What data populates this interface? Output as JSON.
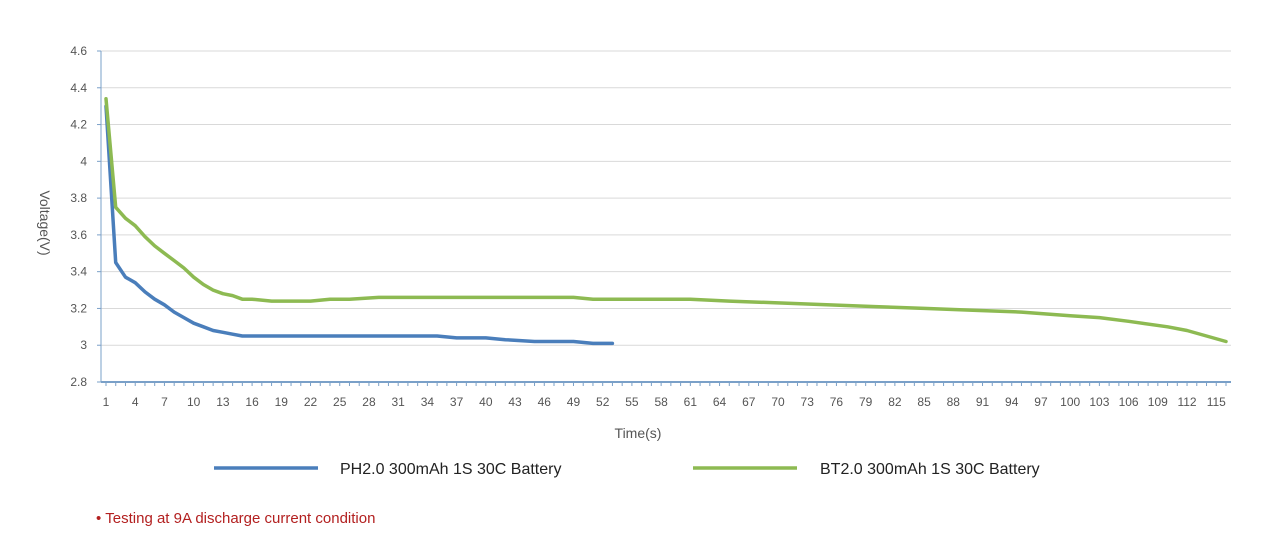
{
  "chart_data": {
    "type": "line",
    "xlabel": "Time(s)",
    "ylabel": "Voltage(V)",
    "xlim": [
      1,
      116
    ],
    "ylim": [
      2.8,
      4.6
    ],
    "y_ticks": [
      2.8,
      3,
      3.2,
      3.4,
      3.6,
      3.8,
      4,
      4.2,
      4.4,
      4.6
    ],
    "y_tick_labels": [
      "2.8",
      "3",
      "3.2",
      "3.4",
      "3.6",
      "3.8",
      "4",
      "4.2",
      "4.4",
      "4.6"
    ],
    "x_ticks": [
      1,
      4,
      7,
      10,
      13,
      16,
      19,
      22,
      25,
      28,
      31,
      34,
      37,
      40,
      43,
      46,
      49,
      52,
      55,
      58,
      61,
      64,
      67,
      70,
      73,
      76,
      79,
      82,
      85,
      88,
      91,
      94,
      97,
      100,
      103,
      106,
      109,
      112,
      115
    ],
    "grid": "horizontal",
    "legend_position": "bottom",
    "series": [
      {
        "name": "PH2.0 300mAh 1S 30C Battery",
        "color": "#4a7ebb",
        "x": [
          1,
          2,
          3,
          4,
          5,
          6,
          7,
          8,
          9,
          10,
          11,
          12,
          13,
          14,
          15,
          16,
          17,
          20,
          25,
          30,
          35,
          37,
          40,
          42,
          45,
          49,
          51,
          53
        ],
        "y": [
          4.3,
          3.45,
          3.37,
          3.34,
          3.29,
          3.25,
          3.22,
          3.18,
          3.15,
          3.12,
          3.1,
          3.08,
          3.07,
          3.06,
          3.05,
          3.05,
          3.05,
          3.05,
          3.05,
          3.05,
          3.05,
          3.04,
          3.04,
          3.03,
          3.02,
          3.02,
          3.01,
          3.01
        ]
      },
      {
        "name": "BT2.0 300mAh 1S 30C Battery",
        "color": "#8dba52",
        "x": [
          1,
          2,
          3,
          4,
          5,
          6,
          7,
          8,
          9,
          10,
          11,
          12,
          13,
          14,
          15,
          16,
          18,
          22,
          24,
          26,
          29,
          31,
          35,
          40,
          45,
          49,
          51,
          55,
          58,
          61,
          65,
          70,
          75,
          80,
          85,
          90,
          95,
          100,
          103,
          106,
          110,
          112,
          114,
          116
        ],
        "y": [
          4.34,
          3.75,
          3.69,
          3.65,
          3.59,
          3.54,
          3.5,
          3.46,
          3.42,
          3.37,
          3.33,
          3.3,
          3.28,
          3.27,
          3.25,
          3.25,
          3.24,
          3.24,
          3.25,
          3.25,
          3.26,
          3.26,
          3.26,
          3.26,
          3.26,
          3.26,
          3.25,
          3.25,
          3.25,
          3.25,
          3.24,
          3.23,
          3.22,
          3.21,
          3.2,
          3.19,
          3.18,
          3.16,
          3.15,
          3.13,
          3.1,
          3.08,
          3.05,
          3.02
        ]
      }
    ],
    "annotation": "Testing at 9A discharge current condition"
  }
}
